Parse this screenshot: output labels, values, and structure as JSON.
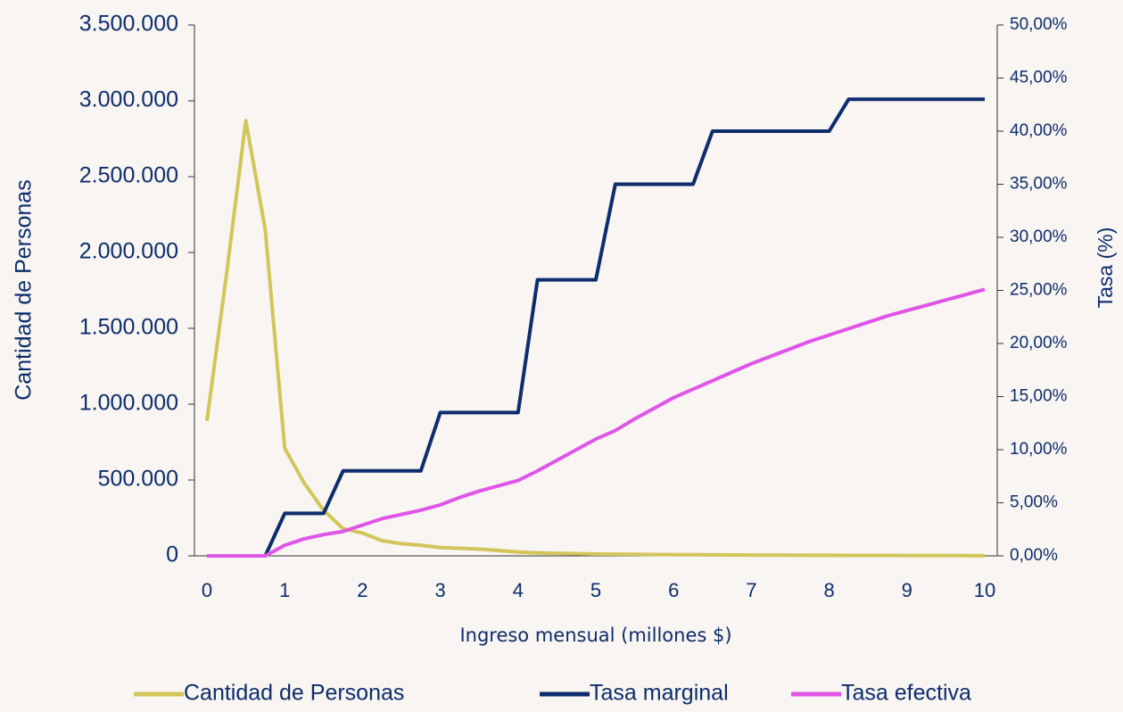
{
  "chart_data": {
    "type": "line",
    "x_label": "Ingreso mensual (millones $)",
    "y_label": "Cantidad de Personas",
    "y2_label": "Tasa (%)",
    "x": [
      0,
      0.25,
      0.5,
      0.75,
      1,
      1.25,
      1.5,
      1.75,
      2,
      2.25,
      2.5,
      2.75,
      3,
      3.25,
      3.5,
      3.75,
      4,
      4.25,
      4.5,
      4.75,
      5,
      5.25,
      5.5,
      5.75,
      6,
      6.25,
      6.5,
      6.75,
      7,
      7.25,
      7.5,
      7.75,
      8,
      8.25,
      8.5,
      8.75,
      9,
      9.25,
      9.5,
      9.75,
      10
    ],
    "xlim": [
      0,
      10
    ],
    "xticks": [
      0,
      1,
      2,
      3,
      4,
      5,
      6,
      7,
      8,
      9,
      10
    ],
    "ylim": [
      0,
      3500000
    ],
    "yticks": [
      0,
      {
        "value": 500000,
        "label": "500.000"
      },
      {
        "value": 1000000,
        "label": "1.000.000"
      },
      {
        "value": 1500000,
        "label": "1.500.000"
      },
      {
        "value": 2000000,
        "label": "2.000.000"
      },
      {
        "value": 2500000,
        "label": "2.500.000"
      },
      {
        "value": 3000000,
        "label": "3.000.000"
      },
      {
        "value": 3500000,
        "label": "3.500.000"
      }
    ],
    "y2lim": [
      0,
      50
    ],
    "y2ticks": [
      {
        "value": 0,
        "label": "0,00%"
      },
      {
        "value": 5,
        "label": "5,00%"
      },
      {
        "value": 10,
        "label": "10,00%"
      },
      {
        "value": 15,
        "label": "15,00%"
      },
      {
        "value": 20,
        "label": "20,00%"
      },
      {
        "value": 25,
        "label": "25,00%"
      },
      {
        "value": 30,
        "label": "30,00%"
      },
      {
        "value": 35,
        "label": "35,00%"
      },
      {
        "value": 40,
        "label": "40,00%"
      },
      {
        "value": 45,
        "label": "45,00%"
      },
      {
        "value": 50,
        "label": "50,00%"
      }
    ],
    "legend": "bottom",
    "series": [
      {
        "name": "Cantidad de Personas",
        "color": "#d4c55a",
        "values": [
          890000,
          1850000,
          2870000,
          2150000,
          710000,
          480000,
          300000,
          180000,
          150000,
          100000,
          80000,
          70000,
          55000,
          50000,
          45000,
          35000,
          25000,
          20000,
          17000,
          15000,
          12000,
          11000,
          10000,
          9000,
          8000,
          7000,
          6500,
          6000,
          5500,
          5000,
          4500,
          4000,
          3500,
          3200,
          3000,
          2800,
          2500,
          2200,
          2000,
          1800,
          1500
        ]
      },
      {
        "name": "Tasa marginal",
        "color": "#0d2d6c",
        "axis": "y2",
        "values": [
          0,
          0,
          0,
          0,
          4,
          4,
          4,
          8,
          8,
          8,
          8,
          8,
          13.5,
          13.5,
          13.5,
          13.5,
          13.5,
          26,
          26,
          26,
          26,
          35,
          35,
          35,
          35,
          35,
          40,
          40,
          40,
          40,
          40,
          40,
          40,
          43,
          43,
          43,
          43,
          43,
          43,
          43,
          43
        ]
      },
      {
        "name": "Tasa efectiva",
        "color": "#e055e8",
        "axis": "y2",
        "values": [
          0,
          0,
          0,
          0,
          1,
          1.6,
          2,
          2.3,
          2.9,
          3.5,
          3.9,
          4.3,
          4.8,
          5.5,
          6.1,
          6.6,
          7.1,
          8,
          9,
          10,
          11,
          11.8,
          12.9,
          13.9,
          14.9,
          15.7,
          16.5,
          17.3,
          18.1,
          18.8,
          19.5,
          20.2,
          20.8,
          21.4,
          22,
          22.6,
          23.1,
          23.6,
          24.1,
          24.6,
          25.1
        ]
      }
    ]
  }
}
